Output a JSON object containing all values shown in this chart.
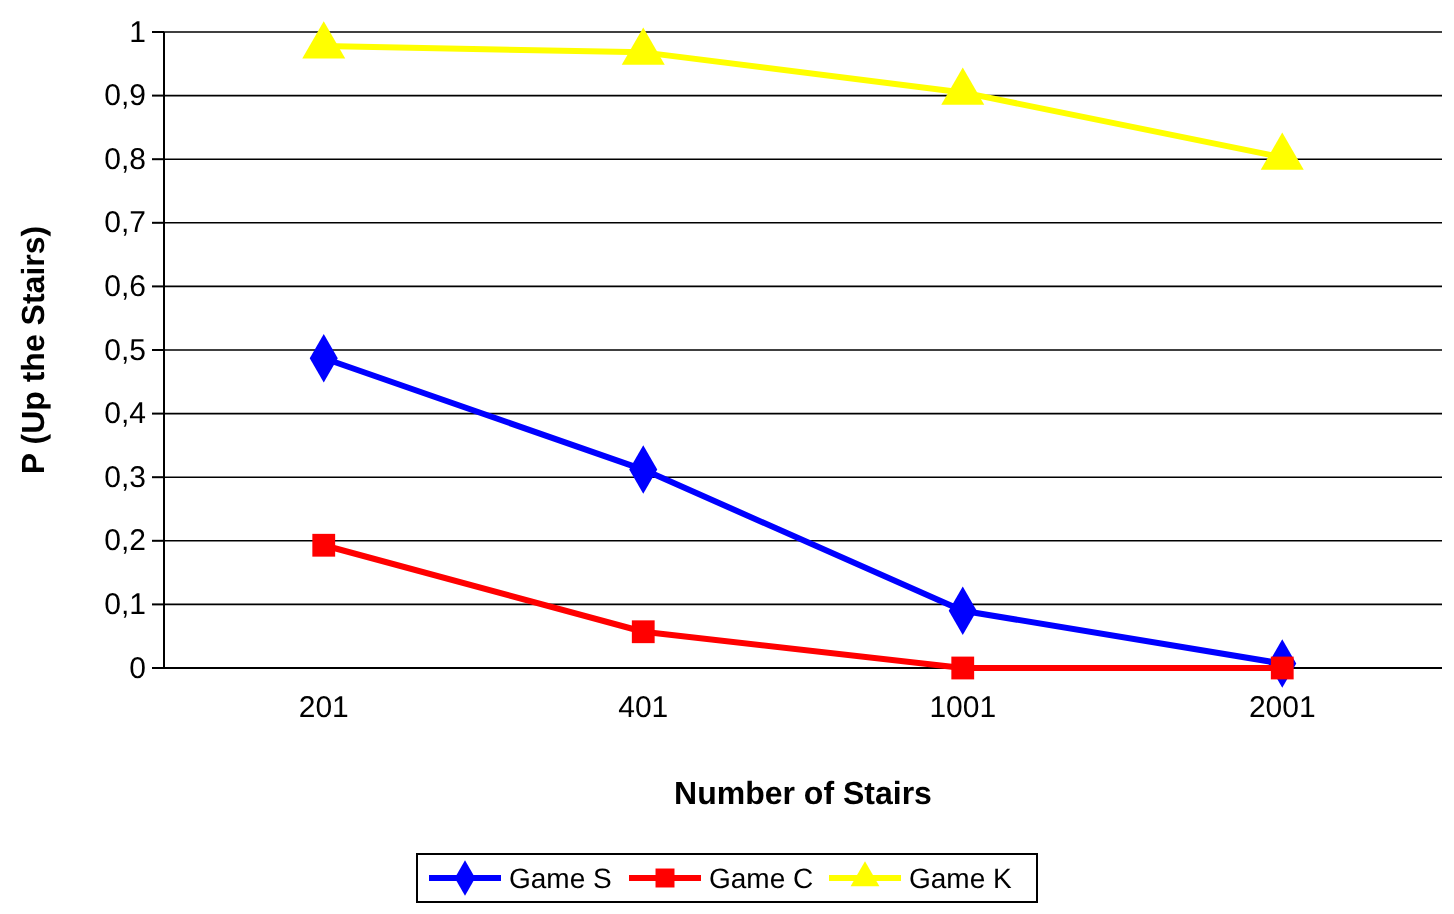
{
  "chart_data": {
    "type": "line",
    "xlabel": "Number of Stairs",
    "ylabel": "P (Up the Stairs)",
    "categories": [
      "201",
      "401",
      "1001",
      "2001"
    ],
    "series": [
      {
        "name": "Game S",
        "color": "#0000ff",
        "values": [
          0.487,
          0.312,
          0.09,
          0.007
        ],
        "marker": "diamond"
      },
      {
        "name": "Game C",
        "color": "#ff0000",
        "values": [
          0.193,
          0.057,
          0.0,
          0.0
        ],
        "marker": "square"
      },
      {
        "name": "Game K",
        "color": "#ffff00",
        "values": [
          0.978,
          0.968,
          0.905,
          0.803
        ],
        "marker": "triangle"
      }
    ],
    "ylim": [
      0,
      1
    ],
    "yticks": [
      0,
      {
        "value": 0.1,
        "label": "0,1"
      },
      {
        "value": 0.2,
        "label": "0,2"
      },
      {
        "value": 0.3,
        "label": "0,3"
      },
      {
        "value": 0.4,
        "label": "0,4"
      },
      {
        "value": 0.5,
        "label": "0,5"
      },
      {
        "value": 0.6,
        "label": "0,6"
      },
      {
        "value": 0.7,
        "label": "0,7"
      },
      {
        "value": 0.8,
        "label": "0,8"
      },
      {
        "value": 0.9,
        "label": "0,9"
      },
      1
    ],
    "grid": "y",
    "legend": "bottom",
    "line_style": "solid"
  }
}
